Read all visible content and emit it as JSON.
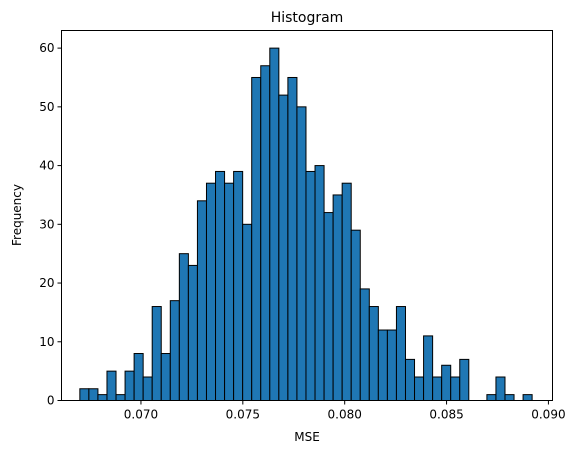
{
  "chart_data": {
    "type": "bar",
    "title": "Histogram",
    "xlabel": "MSE",
    "ylabel": "Frequency",
    "xlim": [
      0.0661,
      0.0902
    ],
    "ylim": [
      0,
      63
    ],
    "grid": false,
    "bar_color": "#1f77b4",
    "edge_color": "#000000",
    "bin_start": 0.067,
    "bin_width": 0.000444,
    "counts": [
      2,
      2,
      1,
      5,
      1,
      5,
      8,
      4,
      16,
      8,
      17,
      25,
      23,
      34,
      37,
      39,
      37,
      39,
      30,
      55,
      57,
      60,
      52,
      55,
      50,
      39,
      40,
      32,
      35,
      37,
      29,
      19,
      16,
      12,
      12,
      16,
      7,
      4,
      11,
      4,
      6,
      4,
      7,
      0,
      0,
      1,
      4,
      1,
      0,
      1
    ],
    "x_ticks": [
      {
        "value": 0.07,
        "label": "0.070"
      },
      {
        "value": 0.075,
        "label": "0.075"
      },
      {
        "value": 0.08,
        "label": "0.080"
      },
      {
        "value": 0.085,
        "label": "0.085"
      },
      {
        "value": 0.09,
        "label": "0.090"
      }
    ],
    "y_ticks": [
      {
        "value": 0,
        "label": "0"
      },
      {
        "value": 10,
        "label": "10"
      },
      {
        "value": 20,
        "label": "20"
      },
      {
        "value": 30,
        "label": "30"
      },
      {
        "value": 40,
        "label": "40"
      },
      {
        "value": 50,
        "label": "50"
      },
      {
        "value": 60,
        "label": "60"
      }
    ]
  }
}
